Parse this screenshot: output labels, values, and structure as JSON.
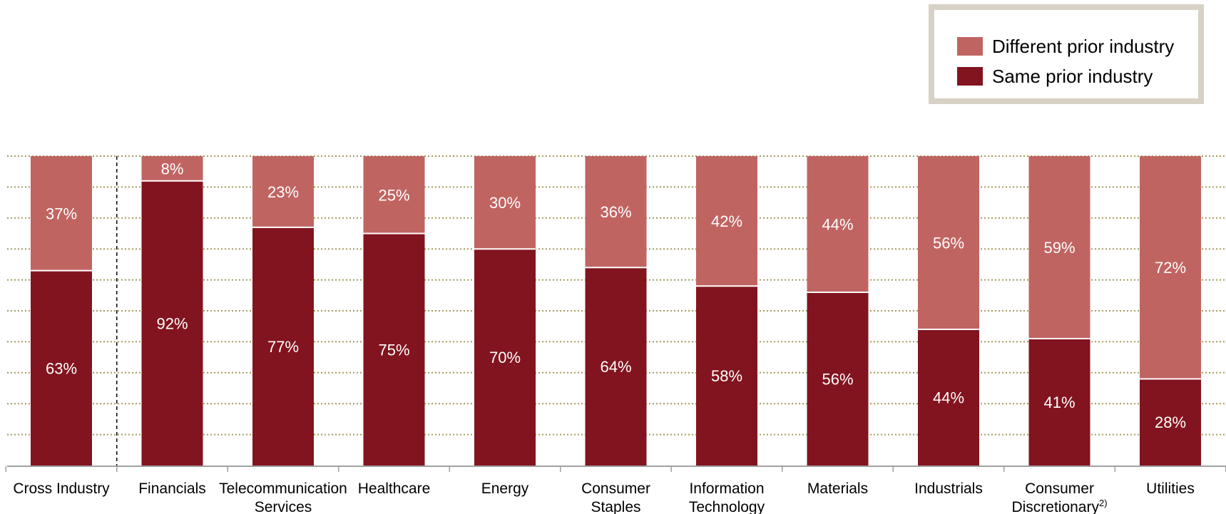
{
  "colors": {
    "different": "#c06462",
    "same": "#82141f",
    "grid": "#a59a5e",
    "legend_border": "#d8d2c6"
  },
  "legend": {
    "items": [
      {
        "label": "Different prior industry",
        "color_key": "different"
      },
      {
        "label": "Same prior industry",
        "color_key": "same"
      }
    ]
  },
  "chart_data": {
    "type": "bar",
    "stacked": true,
    "categories": [
      [
        "Cross Industry"
      ],
      [
        "Financials"
      ],
      [
        "Telecommunication",
        "Services"
      ],
      [
        "Healthcare"
      ],
      [
        "Energy"
      ],
      [
        "Consumer",
        "Staples"
      ],
      [
        "Information",
        "Technology"
      ],
      [
        "Materials"
      ],
      [
        "Industrials"
      ],
      [
        "Consumer",
        "Discretionary"
      ],
      [
        "Utilities"
      ]
    ],
    "category_superscripts": [
      "",
      "",
      "",
      "",
      "",
      "",
      "",
      "",
      "",
      "2)",
      ""
    ],
    "series": [
      {
        "name": "Same prior industry",
        "values": [
          63,
          92,
          77,
          75,
          70,
          64,
          58,
          56,
          44,
          41,
          28
        ]
      },
      {
        "name": "Different prior industry",
        "values": [
          37,
          8,
          23,
          25,
          30,
          36,
          42,
          44,
          56,
          59,
          72
        ]
      }
    ],
    "value_labels": {
      "Same prior industry": [
        "63%",
        "92%",
        "77%",
        "75%",
        "70%",
        "64%",
        "58%",
        "56%",
        "44%",
        "41%",
        "28%"
      ],
      "Different prior industry": [
        "37%",
        "8%",
        "23%",
        "25%",
        "30%",
        "36%",
        "42%",
        "44%",
        "56%",
        "59%",
        "72%"
      ]
    },
    "ylim": [
      0,
      100
    ],
    "grid": true,
    "legend_position": "top-right",
    "separator_after_category": 0
  }
}
